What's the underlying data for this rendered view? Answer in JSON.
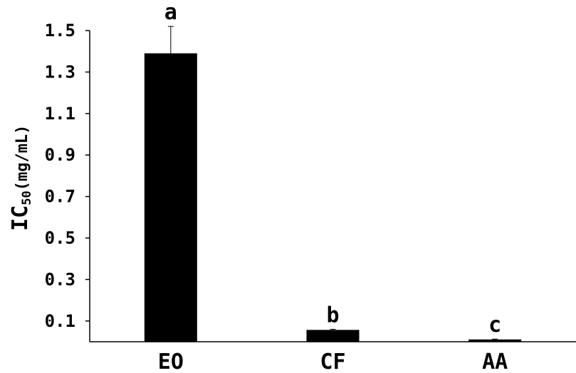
{
  "chart_data": {
    "type": "bar",
    "categories": [
      "EO",
      "CF",
      "AA"
    ],
    "values": [
      1.39,
      0.057,
      0.011
    ],
    "errors": [
      0.13,
      0.003,
      0.002
    ],
    "significance": [
      "a",
      "b",
      "c"
    ],
    "yticks": [
      0.1,
      0.3,
      0.5,
      0.7,
      0.9,
      1.1,
      1.3,
      1.5
    ],
    "ylim": [
      0,
      1.5
    ],
    "ylabel": {
      "main": "IC",
      "subscript": "50",
      "unit": "(mg/mL)"
    },
    "xlabel": "",
    "title": "",
    "bar_color": "#000000",
    "grid": false
  }
}
